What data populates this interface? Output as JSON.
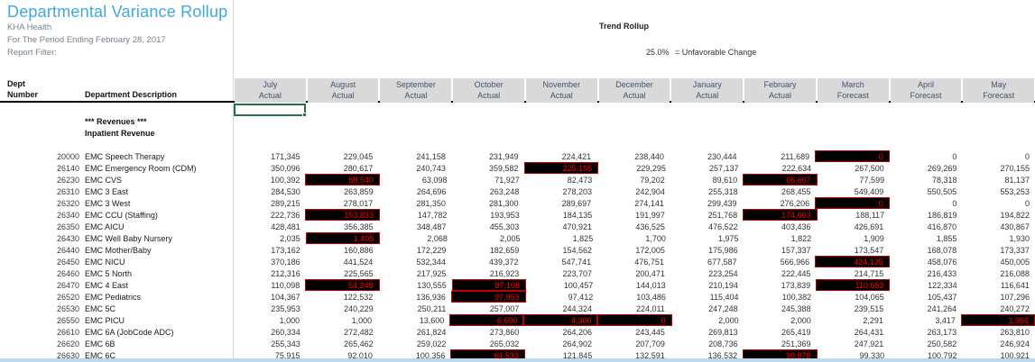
{
  "report": {
    "title": "Departmental Variance Rollup",
    "org": "KHA Health",
    "period": "For The Period Ending February 28, 2017",
    "filter_label": "Report Filter:",
    "trend": {
      "title": "Trend Rollup",
      "threshold": "25.0%",
      "legend": "= Unfavorable Change"
    }
  },
  "colors": {
    "title_accent": "#41a8e0",
    "unfavorable_bg": "#000000",
    "unfavorable_text": "#ff0000",
    "unfavorable_border": "#c00000",
    "selection_green": "#217346",
    "header_fill": "#d9d9d9",
    "bottom_strip": "#bdd7ee"
  },
  "table": {
    "left_header": {
      "line1": "Dept",
      "line2": "Number",
      "desc": "Department Description"
    },
    "columns": [
      {
        "month": "July",
        "basis": "Actual"
      },
      {
        "month": "August",
        "basis": "Actual"
      },
      {
        "month": "September",
        "basis": "Actual"
      },
      {
        "month": "October",
        "basis": "Actual"
      },
      {
        "month": "November",
        "basis": "Actual"
      },
      {
        "month": "December",
        "basis": "Actual"
      },
      {
        "month": "January",
        "basis": "Actual"
      },
      {
        "month": "February",
        "basis": "Actual"
      },
      {
        "month": "March",
        "basis": "Forecast"
      },
      {
        "month": "April",
        "basis": "Forecast"
      },
      {
        "month": "May",
        "basis": "Forecast"
      }
    ],
    "sections": {
      "group1": "*** Revenues ***",
      "group2": "Inpatient Revenue"
    },
    "rows": [
      {
        "dept": "20000",
        "desc": "EMC Speech Therapy",
        "cells": [
          {
            "v": "171,345"
          },
          {
            "v": "229,045"
          },
          {
            "v": "241,158"
          },
          {
            "v": "231,949"
          },
          {
            "v": "224,421"
          },
          {
            "v": "238,440"
          },
          {
            "v": "230,444"
          },
          {
            "v": "211,689"
          },
          {
            "v": "0",
            "hl": true
          },
          {
            "v": "0"
          },
          {
            "v": "0"
          }
        ]
      },
      {
        "dept": "26140",
        "desc": "EMC Emergency Room (CDM)",
        "cells": [
          {
            "v": "350,096"
          },
          {
            "v": "280,617"
          },
          {
            "v": "240,743"
          },
          {
            "v": "359,582"
          },
          {
            "v": "225,195",
            "hl": true
          },
          {
            "v": "229,295"
          },
          {
            "v": "257,137"
          },
          {
            "v": "222,634"
          },
          {
            "v": "267,500"
          },
          {
            "v": "269,269"
          },
          {
            "v": "270,155"
          }
        ]
      },
      {
        "dept": "26230",
        "desc": "EMC CVS",
        "cells": [
          {
            "v": "100,392"
          },
          {
            "v": "59,540",
            "hl": true
          },
          {
            "v": "63,098"
          },
          {
            "v": "71,927"
          },
          {
            "v": "82,473"
          },
          {
            "v": "79,202"
          },
          {
            "v": "89,610"
          },
          {
            "v": "66,667",
            "hl": true
          },
          {
            "v": "77,599"
          },
          {
            "v": "78,318"
          },
          {
            "v": "81,137"
          }
        ]
      },
      {
        "dept": "26310",
        "desc": "EMC 3 East",
        "cells": [
          {
            "v": "284,530"
          },
          {
            "v": "263,859"
          },
          {
            "v": "264,696"
          },
          {
            "v": "263,248"
          },
          {
            "v": "278,203"
          },
          {
            "v": "242,904"
          },
          {
            "v": "255,318"
          },
          {
            "v": "268,455"
          },
          {
            "v": "549,409"
          },
          {
            "v": "550,505"
          },
          {
            "v": "553,253"
          }
        ]
      },
      {
        "dept": "26320",
        "desc": "EMC 3 West",
        "cells": [
          {
            "v": "289,215"
          },
          {
            "v": "278,017"
          },
          {
            "v": "281,350"
          },
          {
            "v": "281,300"
          },
          {
            "v": "289,697"
          },
          {
            "v": "274,141"
          },
          {
            "v": "299,439"
          },
          {
            "v": "276,206"
          },
          {
            "v": "0",
            "hl": true
          },
          {
            "v": "0"
          },
          {
            "v": "0"
          }
        ]
      },
      {
        "dept": "26340",
        "desc": "EMC CCU (Staffing)",
        "cells": [
          {
            "v": "222,736"
          },
          {
            "v": "153,833",
            "hl": true
          },
          {
            "v": "147,782"
          },
          {
            "v": "193,953"
          },
          {
            "v": "184,135"
          },
          {
            "v": "191,997"
          },
          {
            "v": "251,768"
          },
          {
            "v": "174,663",
            "hl": true
          },
          {
            "v": "188,117"
          },
          {
            "v": "186,819"
          },
          {
            "v": "194,822"
          }
        ]
      },
      {
        "dept": "26350",
        "desc": "EMC AICU",
        "cells": [
          {
            "v": "428,481"
          },
          {
            "v": "356,385"
          },
          {
            "v": "348,487"
          },
          {
            "v": "455,303"
          },
          {
            "v": "470,921"
          },
          {
            "v": "436,525"
          },
          {
            "v": "476,522"
          },
          {
            "v": "403,436"
          },
          {
            "v": "426,691"
          },
          {
            "v": "416,870"
          },
          {
            "v": "430,867"
          }
        ]
      },
      {
        "dept": "26430",
        "desc": "EMC Well Baby Nursery",
        "cells": [
          {
            "v": "2,035"
          },
          {
            "v": "1,405",
            "hl": true
          },
          {
            "v": "2,068"
          },
          {
            "v": "2,005"
          },
          {
            "v": "1,825"
          },
          {
            "v": "1,700"
          },
          {
            "v": "1,975"
          },
          {
            "v": "1,822"
          },
          {
            "v": "1,909"
          },
          {
            "v": "1,855"
          },
          {
            "v": "1,930"
          }
        ]
      },
      {
        "dept": "26440",
        "desc": "EMC Mother/Baby",
        "cells": [
          {
            "v": "173,162"
          },
          {
            "v": "160,886"
          },
          {
            "v": "172,229"
          },
          {
            "v": "182,659"
          },
          {
            "v": "154,562"
          },
          {
            "v": "172,005"
          },
          {
            "v": "175,986"
          },
          {
            "v": "157,337"
          },
          {
            "v": "173,547"
          },
          {
            "v": "168,078"
          },
          {
            "v": "173,337"
          }
        ]
      },
      {
        "dept": "26450",
        "desc": "EMC NICU",
        "cells": [
          {
            "v": "370,186"
          },
          {
            "v": "441,524"
          },
          {
            "v": "532,344"
          },
          {
            "v": "439,372"
          },
          {
            "v": "547,741"
          },
          {
            "v": "476,751"
          },
          {
            "v": "677,587"
          },
          {
            "v": "566,966"
          },
          {
            "v": "424,125",
            "hl": true
          },
          {
            "v": "458,076"
          },
          {
            "v": "450,005"
          }
        ]
      },
      {
        "dept": "26460",
        "desc": "EMC 5 North",
        "cells": [
          {
            "v": "212,316"
          },
          {
            "v": "225,565"
          },
          {
            "v": "217,925"
          },
          {
            "v": "216,923"
          },
          {
            "v": "223,707"
          },
          {
            "v": "200,471"
          },
          {
            "v": "223,254"
          },
          {
            "v": "222,445"
          },
          {
            "v": "214,715"
          },
          {
            "v": "216,433"
          },
          {
            "v": "216,088"
          }
        ]
      },
      {
        "dept": "26470",
        "desc": "EMC 4 East",
        "cells": [
          {
            "v": "110,098"
          },
          {
            "v": "54,248",
            "hl": true
          },
          {
            "v": "130,555"
          },
          {
            "v": "87,108",
            "hl": true
          },
          {
            "v": "100,457"
          },
          {
            "v": "144,013"
          },
          {
            "v": "210,194"
          },
          {
            "v": "173,839"
          },
          {
            "v": "110,653",
            "hl": true
          },
          {
            "v": "122,334"
          },
          {
            "v": "116,641"
          }
        ]
      },
      {
        "dept": "26520",
        "desc": "EMC Pediatrics",
        "cells": [
          {
            "v": "104,367"
          },
          {
            "v": "122,532"
          },
          {
            "v": "136,936"
          },
          {
            "v": "97,953",
            "hl": true
          },
          {
            "v": "97,412"
          },
          {
            "v": "103,486"
          },
          {
            "v": "115,404"
          },
          {
            "v": "100,382"
          },
          {
            "v": "104,065"
          },
          {
            "v": "105,437"
          },
          {
            "v": "107,296"
          }
        ]
      },
      {
        "dept": "26530",
        "desc": "EMC 5C",
        "cells": [
          {
            "v": "235,953"
          },
          {
            "v": "240,229"
          },
          {
            "v": "250,211"
          },
          {
            "v": "257,007"
          },
          {
            "v": "244,324"
          },
          {
            "v": "224,011"
          },
          {
            "v": "247,248"
          },
          {
            "v": "245,388"
          },
          {
            "v": "239,515"
          },
          {
            "v": "241,264"
          },
          {
            "v": "240,272"
          }
        ]
      },
      {
        "dept": "26550",
        "desc": "EMC PICU",
        "cells": [
          {
            "v": "1,000"
          },
          {
            "v": "1,000"
          },
          {
            "v": "13,600"
          },
          {
            "v": "6,600",
            "hl": true
          },
          {
            "v": "4,300",
            "hl": true
          },
          {
            "v": "0",
            "hl": true
          },
          {
            "v": "2,000"
          },
          {
            "v": "2,000"
          },
          {
            "v": "2,291"
          },
          {
            "v": "3,417"
          },
          {
            "v": "1,966",
            "hl": true
          }
        ]
      },
      {
        "dept": "26610",
        "desc": "EMC 6A (JobCode ADC)",
        "cells": [
          {
            "v": "260,334"
          },
          {
            "v": "272,482"
          },
          {
            "v": "261,824"
          },
          {
            "v": "273,860"
          },
          {
            "v": "264,206"
          },
          {
            "v": "243,445"
          },
          {
            "v": "269,813"
          },
          {
            "v": "265,419"
          },
          {
            "v": "264,431"
          },
          {
            "v": "263,173"
          },
          {
            "v": "263,810"
          }
        ]
      },
      {
        "dept": "26620",
        "desc": "EMC 6B",
        "cells": [
          {
            "v": "255,343"
          },
          {
            "v": "265,462"
          },
          {
            "v": "259,022"
          },
          {
            "v": "265,032"
          },
          {
            "v": "264,902"
          },
          {
            "v": "207,709"
          },
          {
            "v": "208,736"
          },
          {
            "v": "251,369"
          },
          {
            "v": "247,921"
          },
          {
            "v": "250,582"
          },
          {
            "v": "246,924"
          }
        ]
      },
      {
        "dept": "26630",
        "desc": "EMC 6C",
        "cells": [
          {
            "v": "75,915"
          },
          {
            "v": "92,010"
          },
          {
            "v": "100,356"
          },
          {
            "v": "64,533",
            "hl": true
          },
          {
            "v": "121,845"
          },
          {
            "v": "132,591"
          },
          {
            "v": "136,532"
          },
          {
            "v": "99,878",
            "hl": true
          },
          {
            "v": "99,330"
          },
          {
            "v": "100,792"
          },
          {
            "v": "100,921"
          }
        ]
      }
    ]
  }
}
